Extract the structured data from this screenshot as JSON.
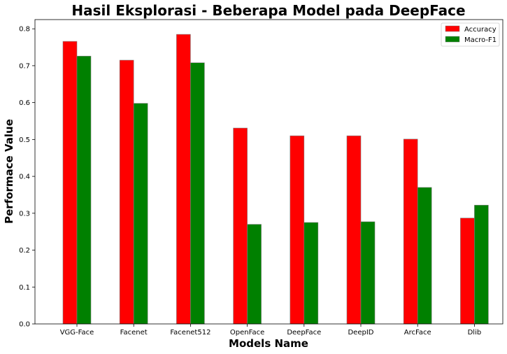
{
  "chart_data": {
    "type": "bar",
    "title": "Hasil Eksplorasi - Beberapa Model pada DeepFace",
    "xlabel": "Models Name",
    "ylabel": "Performace Value",
    "categories": [
      "VGG-Face",
      "Facenet",
      "Facenet512",
      "OpenFace",
      "DeepFace",
      "DeepID",
      "ArcFace",
      "Dlib"
    ],
    "series": [
      {
        "name": "Accuracy",
        "color": "#ff0000",
        "values": [
          0.766,
          0.715,
          0.785,
          0.531,
          0.51,
          0.51,
          0.501,
          0.287
        ]
      },
      {
        "name": "Macro-F1",
        "color": "#008000",
        "values": [
          0.726,
          0.598,
          0.708,
          0.27,
          0.275,
          0.277,
          0.37,
          0.322
        ]
      }
    ],
    "ylim": [
      0,
      0.825
    ],
    "yticks": [
      "0.0",
      "0.1",
      "0.2",
      "0.3",
      "0.4",
      "0.5",
      "0.6",
      "0.7",
      "0.8"
    ],
    "grid": false,
    "legend_position": "top-right"
  }
}
